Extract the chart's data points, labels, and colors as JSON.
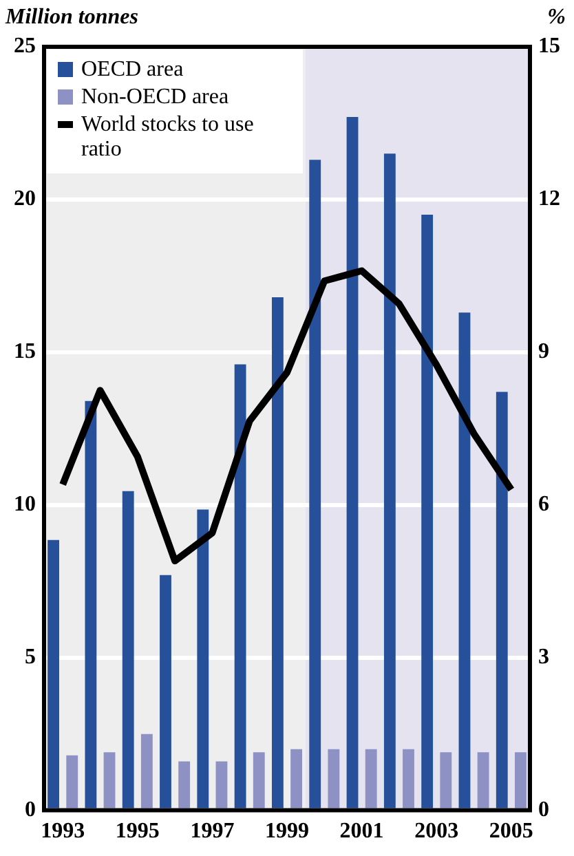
{
  "chart_data": {
    "type": "bar",
    "ylabel": "Million tonnes",
    "y2label": "%",
    "x": [
      1993,
      1994,
      1995,
      1996,
      1997,
      1998,
      1999,
      2000,
      2001,
      2002,
      2003,
      2004,
      2005
    ],
    "xlim": [
      1992.5,
      2005.5
    ],
    "xticks": [
      1993,
      1995,
      1997,
      1999,
      2001,
      2003,
      2005
    ],
    "series": [
      {
        "name": "OECD area",
        "color": "#27509b",
        "values": [
          8.85,
          13.4,
          10.45,
          7.7,
          9.85,
          14.6,
          16.8,
          21.3,
          22.7,
          21.5,
          19.5,
          16.3,
          13.7
        ]
      },
      {
        "name": "Non-OECD area",
        "color": "#8e91c4",
        "values": [
          1.8,
          1.9,
          2.5,
          1.6,
          1.6,
          1.9,
          2.0,
          2.0,
          2.0,
          2.0,
          1.9,
          1.9,
          1.9
        ]
      },
      {
        "name": "World stocks to use ratio",
        "type": "line",
        "axis": "y2",
        "color": "#000000",
        "values": [
          6.4,
          8.25,
          6.95,
          4.9,
          5.45,
          7.65,
          8.6,
          10.4,
          10.6,
          9.95,
          8.75,
          7.4,
          6.3
        ]
      }
    ],
    "ylim": [
      0,
      25
    ],
    "yticks": [
      0,
      5,
      10,
      15,
      20,
      25
    ],
    "y2lim": [
      0,
      15
    ],
    "y2ticks": [
      0,
      3,
      6,
      9,
      12,
      15
    ],
    "bands": [
      {
        "axis": "x",
        "from": 1999.5,
        "to": 2005.5,
        "color": "#e4e3ef"
      }
    ],
    "grid": "y",
    "legend": "top left",
    "marker": "none",
    "line_style": "solid"
  }
}
